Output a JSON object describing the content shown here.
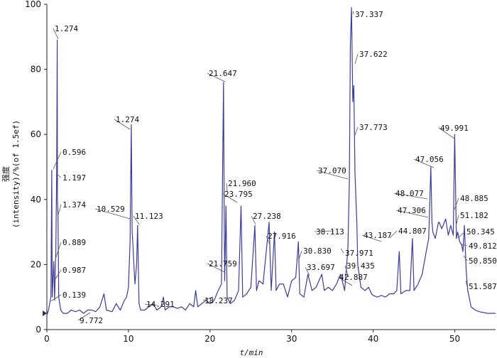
{
  "chart_data": {
    "type": "line",
    "title": "",
    "xlabel": "t/min",
    "ylabel_cn": "强度",
    "ylabel": "(intensity)/%(of 1.5ef)",
    "xlim": [
      0,
      55
    ],
    "ylim": [
      0,
      100
    ],
    "xticks": [
      0,
      10,
      20,
      30,
      40,
      50
    ],
    "yticks": [
      0,
      20,
      40,
      60,
      80,
      100
    ],
    "line_color": "#3c3c9a",
    "series": [
      {
        "values": [
          [
            0,
            4.5
          ],
          [
            0.2,
            6
          ],
          [
            0.5,
            10
          ],
          [
            0.6,
            49
          ],
          [
            0.65,
            10
          ],
          [
            0.85,
            21
          ],
          [
            0.95,
            9
          ],
          [
            1.1,
            24
          ],
          [
            1.2,
            48
          ],
          [
            1.27,
            89
          ],
          [
            1.3,
            40
          ],
          [
            1.37,
            35
          ],
          [
            1.45,
            10
          ],
          [
            1.7,
            6
          ],
          [
            2,
            5
          ],
          [
            2.5,
            5
          ],
          [
            3,
            6
          ],
          [
            3.5,
            5.5
          ],
          [
            4,
            6
          ],
          [
            4.5,
            5
          ],
          [
            5,
            6
          ],
          [
            5.5,
            6
          ],
          [
            6,
            5.5
          ],
          [
            6.5,
            7
          ],
          [
            7,
            11
          ],
          [
            7.3,
            6
          ],
          [
            8,
            5.5
          ],
          [
            8.5,
            8
          ],
          [
            9,
            6
          ],
          [
            9.5,
            9
          ],
          [
            9.77,
            10
          ],
          [
            10,
            13
          ],
          [
            10.2,
            27
          ],
          [
            10.35,
            63
          ],
          [
            10.45,
            30
          ],
          [
            10.53,
            27
          ],
          [
            10.7,
            18
          ],
          [
            10.8,
            14
          ],
          [
            11,
            20
          ],
          [
            11.12,
            32
          ],
          [
            11.3,
            8
          ],
          [
            11.5,
            6
          ],
          [
            12,
            6
          ],
          [
            12.5,
            7
          ],
          [
            13,
            8
          ],
          [
            13.5,
            6
          ],
          [
            14,
            7
          ],
          [
            14.29,
            10
          ],
          [
            14.5,
            6
          ],
          [
            15,
            7
          ],
          [
            15.5,
            7
          ],
          [
            16,
            6.5
          ],
          [
            16.5,
            7
          ],
          [
            17,
            6
          ],
          [
            17.5,
            8
          ],
          [
            18,
            7
          ],
          [
            18.24,
            12
          ],
          [
            18.5,
            7
          ],
          [
            19,
            8
          ],
          [
            19.5,
            9
          ],
          [
            20,
            8
          ],
          [
            20.5,
            9
          ],
          [
            21,
            12
          ],
          [
            21.4,
            14
          ],
          [
            21.65,
            76
          ],
          [
            21.76,
            28
          ],
          [
            21.8,
            15
          ],
          [
            21.96,
            38
          ],
          [
            22.1,
            10
          ],
          [
            22.5,
            8
          ],
          [
            23,
            9
          ],
          [
            23.5,
            12
          ],
          [
            23.8,
            38
          ],
          [
            24,
            10
          ],
          [
            24.5,
            11
          ],
          [
            25,
            13
          ],
          [
            25.5,
            32
          ],
          [
            25.7,
            12
          ],
          [
            26,
            15
          ],
          [
            26.5,
            14
          ],
          [
            27.24,
            33
          ],
          [
            27.5,
            12
          ],
          [
            27.9,
            30
          ],
          [
            28.1,
            12
          ],
          [
            28.5,
            14
          ],
          [
            29,
            14
          ],
          [
            29.5,
            10
          ],
          [
            30,
            15
          ],
          [
            30.5,
            16
          ],
          [
            30.83,
            27
          ],
          [
            31,
            11
          ],
          [
            31.5,
            10
          ],
          [
            32,
            17
          ],
          [
            32.5,
            12
          ],
          [
            33,
            13
          ],
          [
            33.7,
            17
          ],
          [
            34,
            12
          ],
          [
            34.5,
            13
          ],
          [
            35,
            12
          ],
          [
            35.5,
            14
          ],
          [
            36,
            17
          ],
          [
            36.5,
            12
          ],
          [
            36.9,
            25
          ],
          [
            37.07,
            45
          ],
          [
            37.2,
            88
          ],
          [
            37.34,
            99
          ],
          [
            37.5,
            70
          ],
          [
            37.62,
            75
          ],
          [
            37.77,
            48
          ],
          [
            38,
            32
          ],
          [
            38.11,
            20
          ],
          [
            38.5,
            13
          ],
          [
            39,
            12
          ],
          [
            39.44,
            13
          ],
          [
            39.8,
            11
          ],
          [
            40,
            10.5
          ],
          [
            40.5,
            10
          ],
          [
            41,
            10.5
          ],
          [
            41.5,
            10
          ],
          [
            42,
            11
          ],
          [
            42.5,
            11
          ],
          [
            42.89,
            12
          ],
          [
            43.19,
            24
          ],
          [
            43.4,
            11
          ],
          [
            44,
            12
          ],
          [
            44.5,
            12
          ],
          [
            44.81,
            28
          ],
          [
            45,
            12
          ],
          [
            45.5,
            14
          ],
          [
            46,
            17
          ],
          [
            46.5,
            24
          ],
          [
            46.8,
            28
          ],
          [
            47.06,
            50
          ],
          [
            47.2,
            33
          ],
          [
            47.31,
            30
          ],
          [
            47.6,
            28
          ],
          [
            48,
            33
          ],
          [
            48.08,
            33
          ],
          [
            48.4,
            31
          ],
          [
            48.885,
            34
          ],
          [
            49.2,
            29
          ],
          [
            49.5,
            32
          ],
          [
            49.81,
            29
          ],
          [
            49.99,
            60
          ],
          [
            50.2,
            28
          ],
          [
            50.35,
            30
          ],
          [
            50.6,
            27
          ],
          [
            50.85,
            26
          ],
          [
            51,
            24
          ],
          [
            51.18,
            32
          ],
          [
            51.4,
            18
          ],
          [
            51.59,
            12
          ],
          [
            52,
            7
          ],
          [
            52.5,
            6
          ],
          [
            53,
            5.5
          ],
          [
            54,
            5
          ],
          [
            55,
            5
          ]
        ]
      }
    ],
    "peak_labels": [
      "1.274",
      "0.596",
      "1.197",
      "1.374",
      "0.889",
      "0.987",
      "0.139",
      "1.274",
      "10.529",
      "11.123",
      "9.772",
      "14.291",
      "18.237",
      "21.647",
      "21.960",
      "23.795",
      "21.759",
      "27.238",
      "27.916",
      "30.830",
      "33.697",
      "37.337",
      "37.622",
      "37.773",
      "37.070",
      "38.113",
      "37.971",
      "39.435",
      "42.887",
      "43.187",
      "44.807",
      "47.056",
      "48.077",
      "47.306",
      "49.991",
      "48.885",
      "51.182",
      "50.345",
      "49.812",
      "50.850",
      "51.587"
    ]
  }
}
